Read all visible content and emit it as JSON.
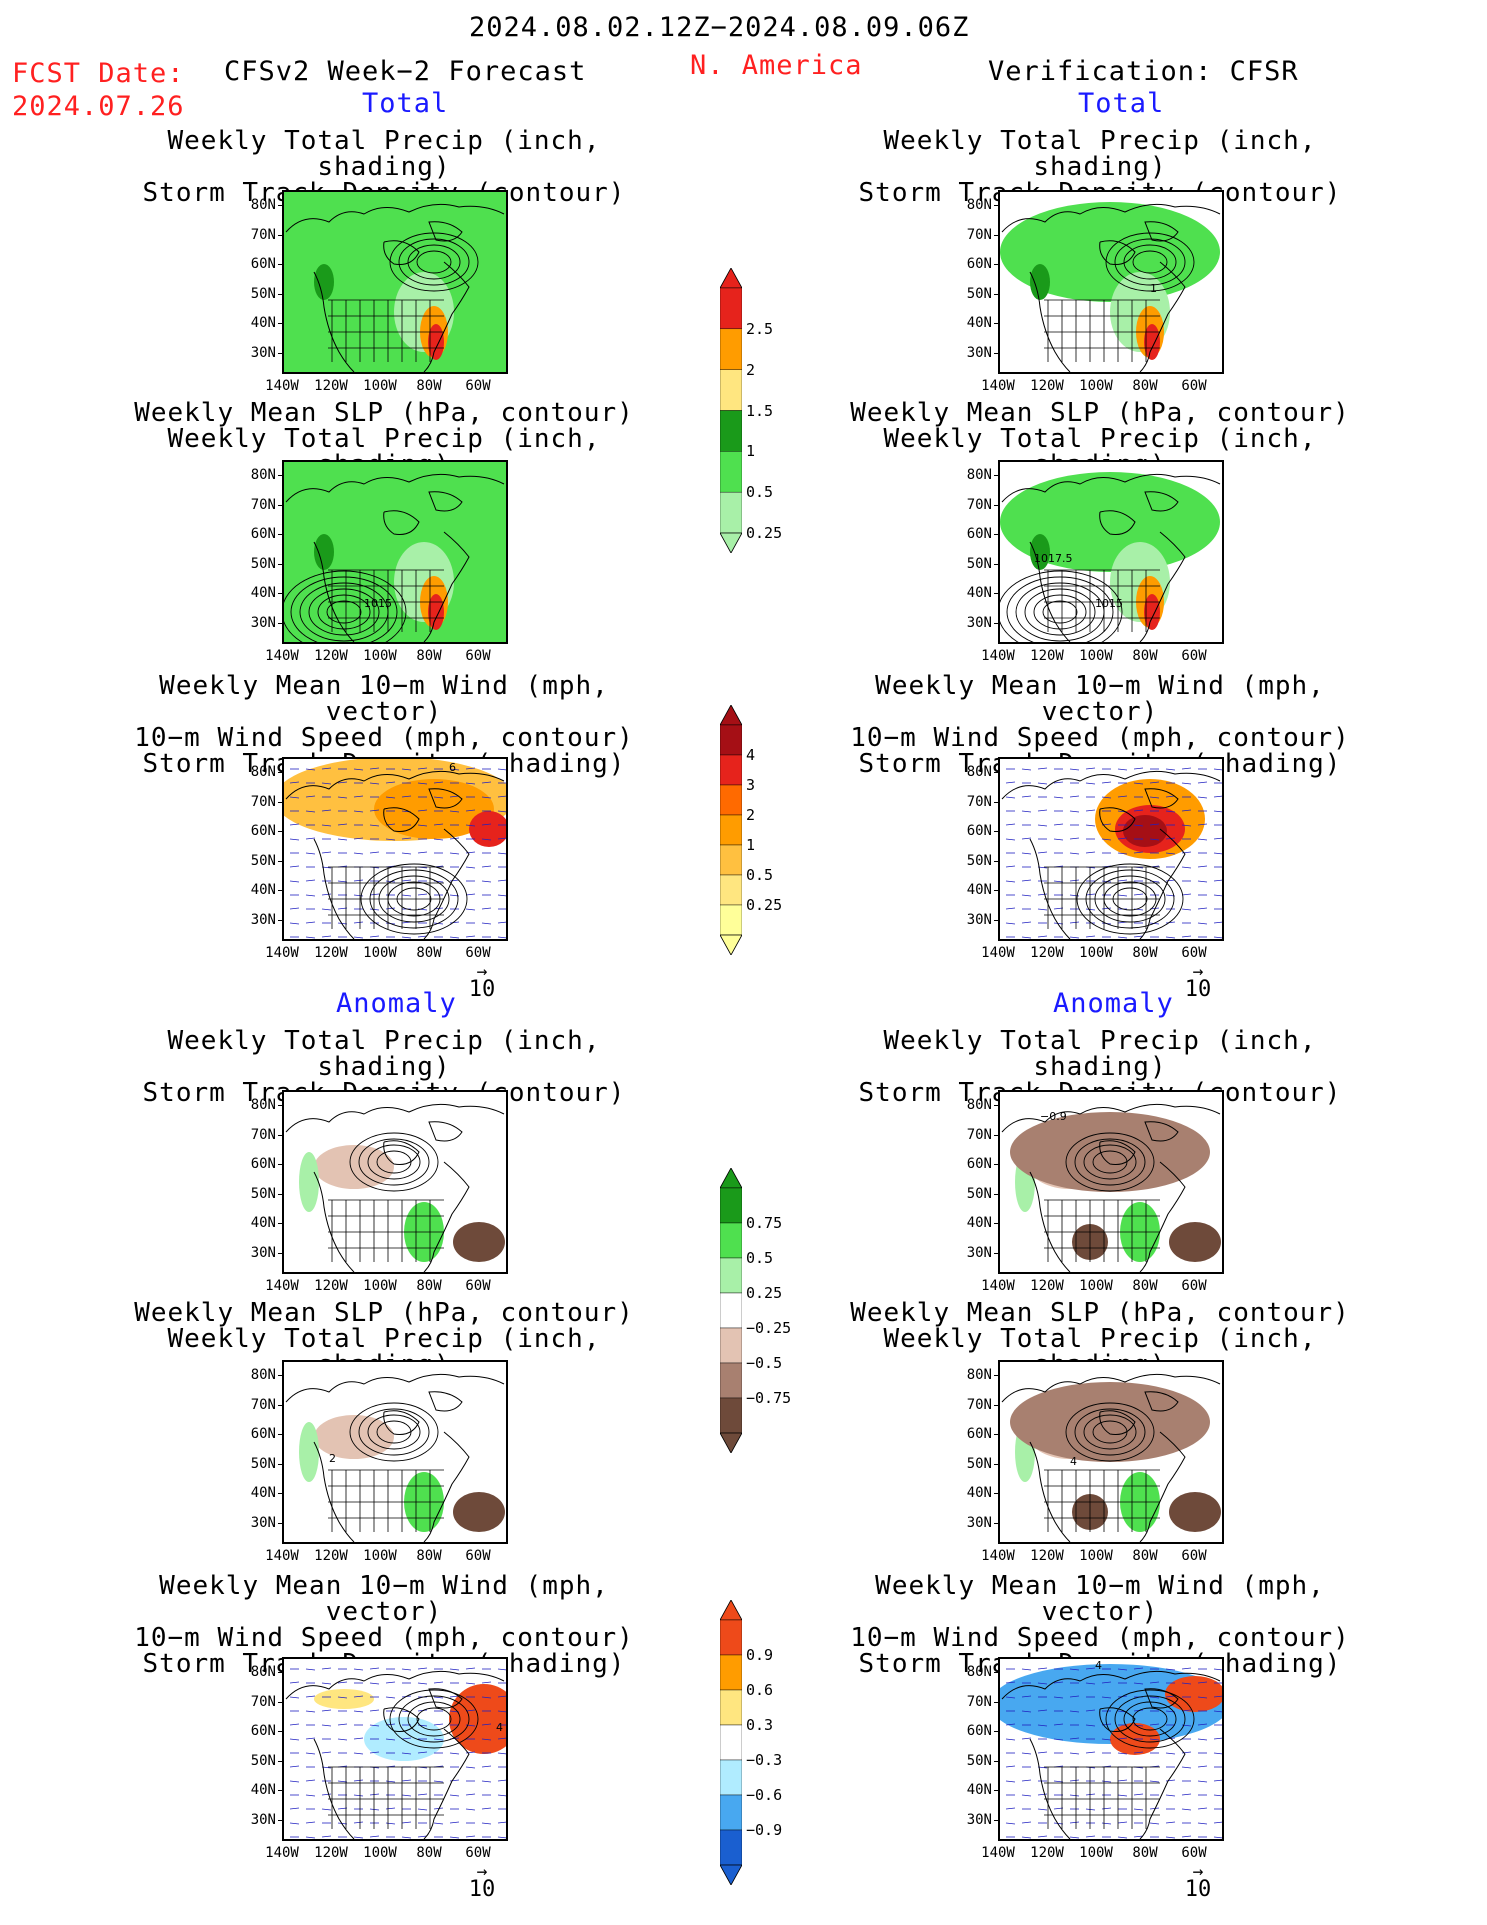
{
  "header": {
    "date_range": "2024.08.02.12Z−2024.08.09.06Z",
    "fcst_label": "FCST Date:",
    "fcst_date": "2024.07.26",
    "left_title": "CFSv2 Week−2 Forecast",
    "center_title": "N. America",
    "right_title": "Verification: CFSR"
  },
  "sections": {
    "total": "Total",
    "anomaly": "Anomaly"
  },
  "panel_titles": {
    "precip_track": [
      "Weekly Total Precip (inch, shading)",
      "Storm Track Density (contour)"
    ],
    "slp_precip": [
      "Weekly Mean SLP (hPa, contour)",
      "Weekly Total Precip (inch, shading)"
    ],
    "wind_track": [
      "Weekly Mean 10−m Wind (mph, vector)",
      "10−m Wind Speed (mph, contour)",
      "Storm Track Density (shading)"
    ]
  },
  "axes": {
    "lat_ticks": [
      "80N",
      "70N",
      "60N",
      "50N",
      "40N",
      "30N"
    ],
    "lon_ticks": [
      "140W",
      "120W",
      "100W",
      "80W",
      "60W"
    ]
  },
  "vector_reference": {
    "arrow": "→",
    "value": "10"
  },
  "contour_labels": {
    "tot_slp_fcst": "1015",
    "tot_slp_ver_a": "1017.5",
    "tot_slp_ver_b": "1015",
    "tot_track_ver": "1",
    "tot_wind_fcst": "6",
    "anom_precip_ver": "−0.9",
    "anom_slp_fcst": "2",
    "anom_slp_ver": "4",
    "anom_wind_fcst": "4",
    "anom_wind_ver": "4"
  },
  "colorbars": {
    "precip_total": {
      "labels": [
        "2.5",
        "2",
        "1.5",
        "1",
        "0.5",
        "0.25"
      ],
      "colors": [
        "#e6231c",
        "#ff9c00",
        "#ffe680",
        "#1a9a1a",
        "#4fe04f",
        "#a8f0a8"
      ]
    },
    "track_total": {
      "labels": [
        "4",
        "3",
        "2",
        "1",
        "0.5",
        "0.25"
      ],
      "colors": [
        "#a50f15",
        "#e6231c",
        "#ff6a00",
        "#ff9c00",
        "#ffc040",
        "#ffe680",
        "#ffff99"
      ]
    },
    "precip_anom": {
      "labels": [
        "0.75",
        "0.5",
        "0.25",
        "−0.25",
        "−0.5",
        "−0.75"
      ],
      "colors": [
        "#1a9a1a",
        "#4fe04f",
        "#a8f0a8",
        "#ffffff",
        "#e3c3b3",
        "#a88070",
        "#6e4a3a"
      ]
    },
    "track_anom": {
      "labels": [
        "0.9",
        "0.6",
        "0.3",
        "−0.3",
        "−0.6",
        "−0.9"
      ],
      "colors": [
        "#ee4a1a",
        "#ff9c00",
        "#ffe680",
        "#ffffff",
        "#b0ecff",
        "#48a8f0",
        "#1a5fd0"
      ]
    }
  }
}
